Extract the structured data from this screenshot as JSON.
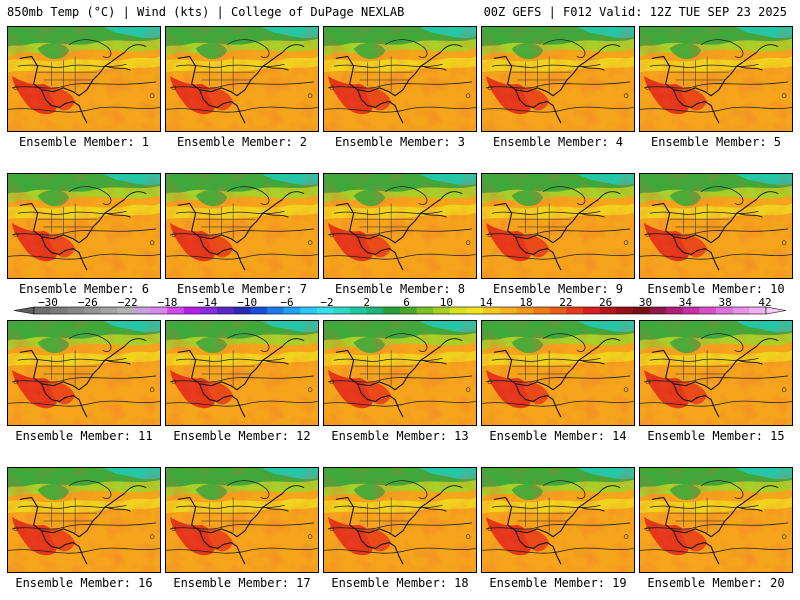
{
  "header": {
    "title_left": "850mb Temp (°C) | Wind (kts) | College of DuPage NEXLAB",
    "title_right": "00Z GEFS | F012 Valid: 12Z TUE SEP 23 2025"
  },
  "panels": [
    {
      "label": "Ensemble Member: 1"
    },
    {
      "label": "Ensemble Member: 2"
    },
    {
      "label": "Ensemble Member: 3"
    },
    {
      "label": "Ensemble Member: 4"
    },
    {
      "label": "Ensemble Member: 5"
    },
    {
      "label": "Ensemble Member: 6"
    },
    {
      "label": "Ensemble Member: 7"
    },
    {
      "label": "Ensemble Member: 8"
    },
    {
      "label": "Ensemble Member: 9"
    },
    {
      "label": "Ensemble Member: 10"
    },
    {
      "label": "Ensemble Member: 11"
    },
    {
      "label": "Ensemble Member: 12"
    },
    {
      "label": "Ensemble Member: 13"
    },
    {
      "label": "Ensemble Member: 14"
    },
    {
      "label": "Ensemble Member: 15"
    },
    {
      "label": "Ensemble Member: 16"
    },
    {
      "label": "Ensemble Member: 17"
    },
    {
      "label": "Ensemble Member: 18"
    },
    {
      "label": "Ensemble Member: 19"
    },
    {
      "label": "Ensemble Member: 20"
    }
  ],
  "colorbar": {
    "tick_labels": [
      "−30",
      "−26",
      "−22",
      "−18",
      "−14",
      "−10",
      "−6",
      "−2",
      "2",
      "6",
      "10",
      "14",
      "18",
      "22",
      "26",
      "30",
      "34",
      "38",
      "42"
    ],
    "colors": [
      "#6e6e6e",
      "#7b7b7b",
      "#878787",
      "#949494",
      "#a2a2a2",
      "#b2b2b2",
      "#c6a0de",
      "#d986ef",
      "#d447ef",
      "#b61ee8",
      "#8a2be2",
      "#5a28c8",
      "#2a2ab8",
      "#1450d8",
      "#1e78ee",
      "#1ea0f8",
      "#28c8f8",
      "#32e0f0",
      "#2ed8c8",
      "#20c8a0",
      "#1eb478",
      "#28a038",
      "#4aa828",
      "#7cc024",
      "#a8d020",
      "#d8e020",
      "#f0e41e",
      "#f8c81e",
      "#f6b01c",
      "#f4981a",
      "#f07c18",
      "#ec5e18",
      "#e63a1a",
      "#d81e1e",
      "#b8141a",
      "#961016",
      "#781014",
      "#901848",
      "#b0207a",
      "#c830a8",
      "#d850c8",
      "#e070e0",
      "#e890ec",
      "#f0b0f4"
    ]
  }
}
